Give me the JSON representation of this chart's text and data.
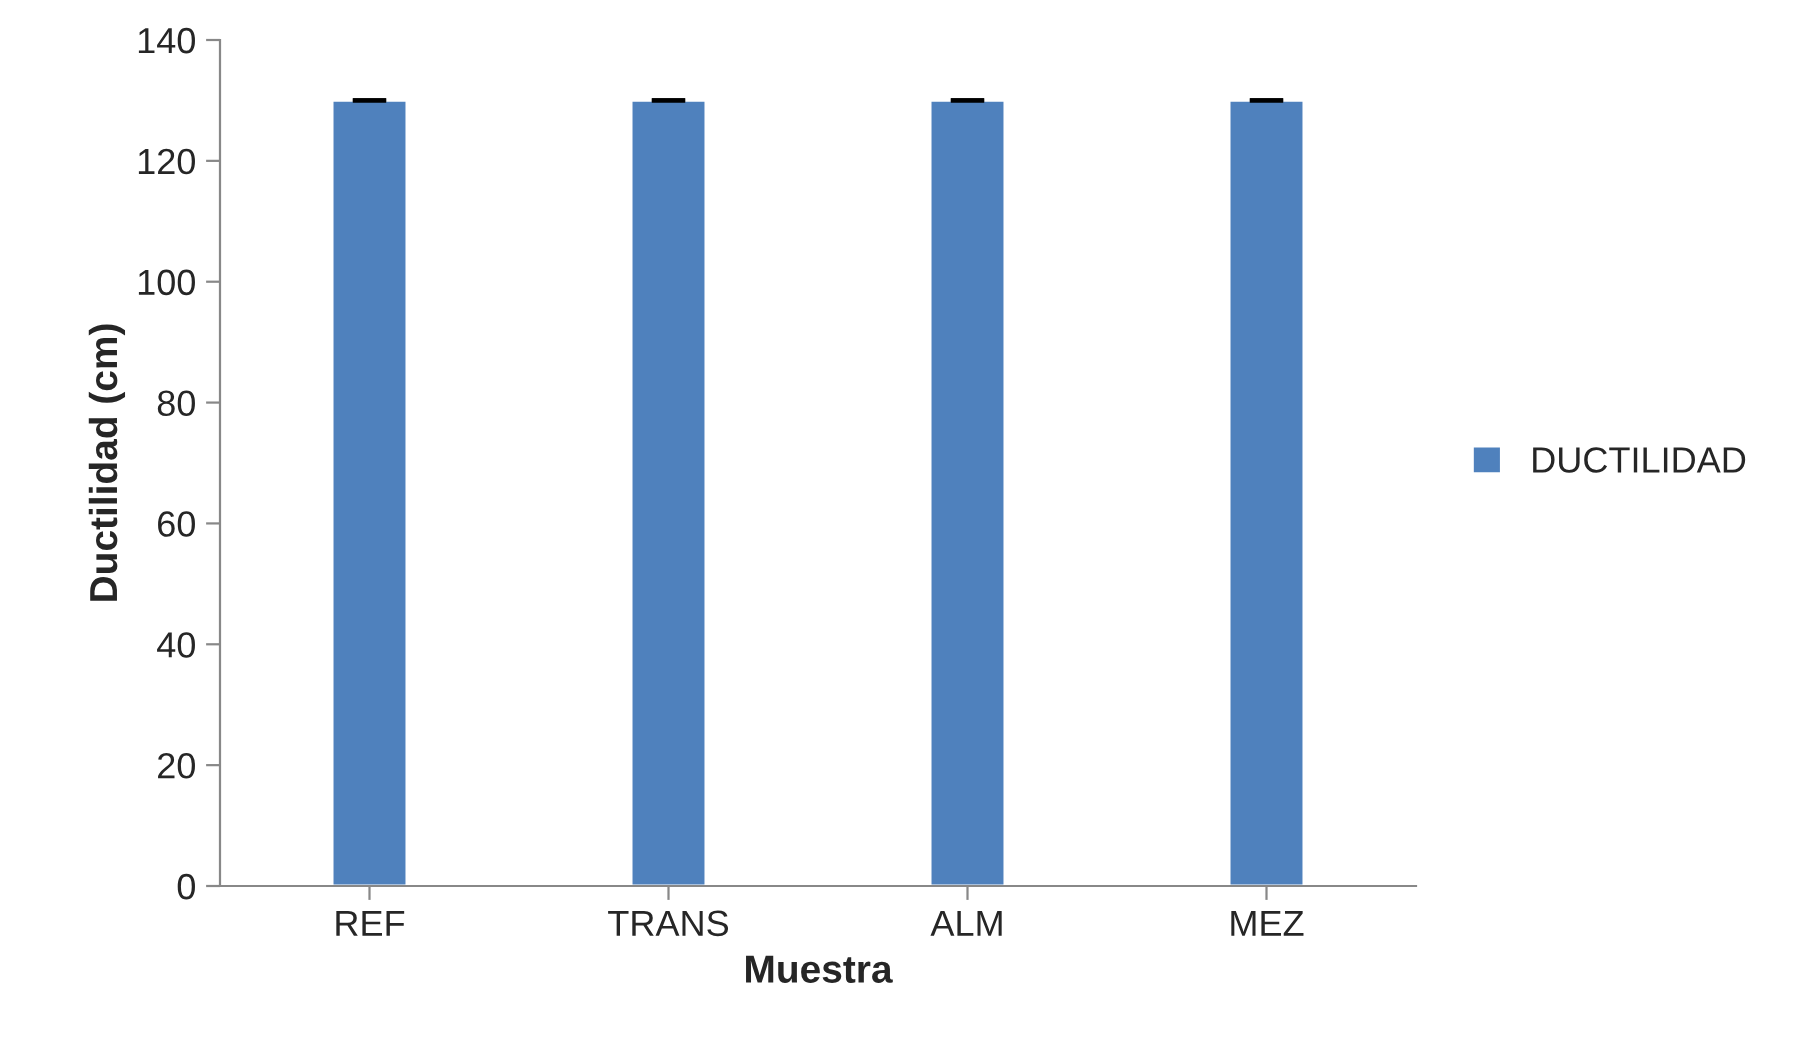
{
  "chart_data": {
    "type": "bar",
    "xlabel": "Muestra",
    "ylabel": "Ductilidad (cm)",
    "categories": [
      "REF",
      "TRANS",
      "ALM",
      "MEZ"
    ],
    "series": [
      {
        "name": "DUCTILIDAD",
        "color": "#4f81bd",
        "values": [
          130,
          130,
          130,
          130
        ],
        "errors": [
          0,
          0,
          0,
          0
        ]
      }
    ],
    "ylim": [
      0,
      140
    ],
    "yticks": [
      0,
      20,
      40,
      60,
      80,
      100,
      120,
      140
    ],
    "grid": false,
    "legend": "right"
  }
}
